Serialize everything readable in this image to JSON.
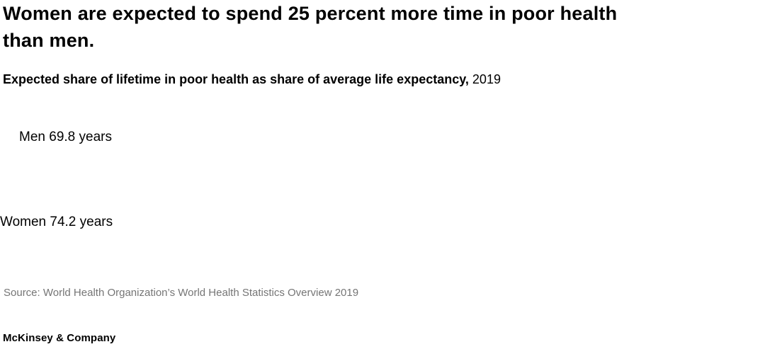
{
  "header": {
    "title_line1": "Women are expected to spend 25 percent more time in poor health",
    "title_line2": "than men.",
    "subtitle_bold": "Expected share of lifetime in poor health as share of average life expectancy,",
    "subtitle_year": "2019"
  },
  "chart": {
    "men_label": "Men 69.8 years",
    "women_label": "Women 74.2 years"
  },
  "footer": {
    "source": "Source: World Health Organization’s World Health Statistics Overview 2019",
    "brand": "McKinsey & Company"
  },
  "colors": {
    "background": "#ffffff",
    "text": "#000000",
    "source_gray": "#757575"
  },
  "chart_data": {
    "type": "bar",
    "orientation": "horizontal",
    "categories": [
      "Men",
      "Women"
    ],
    "values": [
      69.8,
      74.2
    ],
    "unit": "years (average life expectancy)",
    "category_labels": [
      "Men 69.8 years",
      "Women 74.2 years"
    ],
    "title": "Women are expected to spend 25 percent more time in poor health than men.",
    "subtitle": "Expected share of lifetime in poor health as share of average life expectancy, 2019",
    "source": "Source: World Health Organization’s World Health Statistics Overview 2019",
    "legend_position": "none",
    "grid": false,
    "bars_visible": false
  }
}
